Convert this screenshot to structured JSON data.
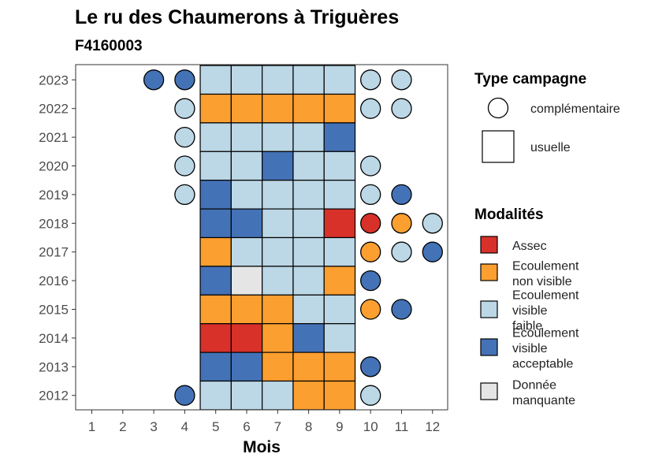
{
  "chart_data": {
    "type": "heatmap",
    "title": "Le ru des Chaumerons à Triguères",
    "subtitle": "F4160003",
    "xlabel": "Mois",
    "ylabel": "",
    "x_ticks": [
      "1",
      "2",
      "3",
      "4",
      "5",
      "6",
      "7",
      "8",
      "9",
      "10",
      "11",
      "12"
    ],
    "y_ticks": [
      "2012",
      "2013",
      "2014",
      "2015",
      "2016",
      "2017",
      "2018",
      "2019",
      "2020",
      "2021",
      "2022",
      "2023"
    ],
    "grid": false,
    "legends": {
      "campaign": {
        "title": "Type campagne",
        "items": [
          {
            "key": "complementaire",
            "label": "complémentaire",
            "shape": "circle"
          },
          {
            "key": "usuelle",
            "label": "usuelle",
            "shape": "square"
          }
        ]
      },
      "modalities": {
        "title": "Modalités",
        "items": [
          {
            "key": "A",
            "lines": [
              "Assec"
            ],
            "color": "#d7312a"
          },
          {
            "key": "E",
            "lines": [
              "Ecoulement",
              "non visible"
            ],
            "color": "#fb9f30"
          },
          {
            "key": "F",
            "lines": [
              "Ecoulement",
              "visible",
              "faible"
            ],
            "color": "#bcd7e6"
          },
          {
            "key": "V",
            "lines": [
              "Ecoulement",
              "visible",
              "acceptable"
            ],
            "color": "#4472b6"
          },
          {
            "key": "D",
            "lines": [
              "Donnée",
              "manquante"
            ],
            "color": "#e5e5e5"
          }
        ]
      }
    },
    "rows": [
      {
        "year": "2023",
        "cells": [
          {
            "m": 3,
            "v": "V",
            "t": "c"
          },
          {
            "m": 4,
            "v": "V",
            "t": "c"
          },
          {
            "m": 5,
            "v": "F",
            "t": "u"
          },
          {
            "m": 6,
            "v": "F",
            "t": "u"
          },
          {
            "m": 7,
            "v": "F",
            "t": "u"
          },
          {
            "m": 8,
            "v": "F",
            "t": "u"
          },
          {
            "m": 9,
            "v": "F",
            "t": "u"
          },
          {
            "m": 10,
            "v": "F",
            "t": "c"
          },
          {
            "m": 11,
            "v": "F",
            "t": "c"
          }
        ]
      },
      {
        "year": "2022",
        "cells": [
          {
            "m": 4,
            "v": "F",
            "t": "c"
          },
          {
            "m": 5,
            "v": "E",
            "t": "u"
          },
          {
            "m": 6,
            "v": "E",
            "t": "u"
          },
          {
            "m": 7,
            "v": "E",
            "t": "u"
          },
          {
            "m": 8,
            "v": "E",
            "t": "u"
          },
          {
            "m": 9,
            "v": "E",
            "t": "u"
          },
          {
            "m": 10,
            "v": "F",
            "t": "c"
          },
          {
            "m": 11,
            "v": "F",
            "t": "c"
          }
        ]
      },
      {
        "year": "2021",
        "cells": [
          {
            "m": 4,
            "v": "F",
            "t": "c"
          },
          {
            "m": 5,
            "v": "F",
            "t": "u"
          },
          {
            "m": 6,
            "v": "F",
            "t": "u"
          },
          {
            "m": 7,
            "v": "F",
            "t": "u"
          },
          {
            "m": 8,
            "v": "F",
            "t": "u"
          },
          {
            "m": 9,
            "v": "V",
            "t": "u"
          }
        ]
      },
      {
        "year": "2020",
        "cells": [
          {
            "m": 4,
            "v": "F",
            "t": "c"
          },
          {
            "m": 5,
            "v": "F",
            "t": "u"
          },
          {
            "m": 6,
            "v": "F",
            "t": "u"
          },
          {
            "m": 7,
            "v": "V",
            "t": "u"
          },
          {
            "m": 8,
            "v": "F",
            "t": "u"
          },
          {
            "m": 9,
            "v": "F",
            "t": "u"
          },
          {
            "m": 10,
            "v": "F",
            "t": "c"
          }
        ]
      },
      {
        "year": "2019",
        "cells": [
          {
            "m": 4,
            "v": "F",
            "t": "c"
          },
          {
            "m": 5,
            "v": "V",
            "t": "u"
          },
          {
            "m": 6,
            "v": "F",
            "t": "u"
          },
          {
            "m": 7,
            "v": "F",
            "t": "u"
          },
          {
            "m": 8,
            "v": "F",
            "t": "u"
          },
          {
            "m": 9,
            "v": "F",
            "t": "u"
          },
          {
            "m": 10,
            "v": "F",
            "t": "c"
          },
          {
            "m": 11,
            "v": "V",
            "t": "c"
          }
        ]
      },
      {
        "year": "2018",
        "cells": [
          {
            "m": 5,
            "v": "V",
            "t": "u"
          },
          {
            "m": 6,
            "v": "V",
            "t": "u"
          },
          {
            "m": 7,
            "v": "F",
            "t": "u"
          },
          {
            "m": 8,
            "v": "F",
            "t": "u"
          },
          {
            "m": 9,
            "v": "A",
            "t": "u"
          },
          {
            "m": 10,
            "v": "A",
            "t": "c"
          },
          {
            "m": 11,
            "v": "E",
            "t": "c"
          },
          {
            "m": 12,
            "v": "F",
            "t": "c"
          }
        ]
      },
      {
        "year": "2017",
        "cells": [
          {
            "m": 5,
            "v": "E",
            "t": "u"
          },
          {
            "m": 6,
            "v": "F",
            "t": "u"
          },
          {
            "m": 7,
            "v": "F",
            "t": "u"
          },
          {
            "m": 8,
            "v": "F",
            "t": "u"
          },
          {
            "m": 9,
            "v": "F",
            "t": "u"
          },
          {
            "m": 10,
            "v": "E",
            "t": "c"
          },
          {
            "m": 11,
            "v": "F",
            "t": "c"
          },
          {
            "m": 12,
            "v": "V",
            "t": "c"
          }
        ]
      },
      {
        "year": "2016",
        "cells": [
          {
            "m": 5,
            "v": "V",
            "t": "u"
          },
          {
            "m": 6,
            "v": "D",
            "t": "u"
          },
          {
            "m": 7,
            "v": "F",
            "t": "u"
          },
          {
            "m": 8,
            "v": "F",
            "t": "u"
          },
          {
            "m": 9,
            "v": "E",
            "t": "u"
          },
          {
            "m": 10,
            "v": "V",
            "t": "c"
          }
        ]
      },
      {
        "year": "2015",
        "cells": [
          {
            "m": 5,
            "v": "E",
            "t": "u"
          },
          {
            "m": 6,
            "v": "E",
            "t": "u"
          },
          {
            "m": 7,
            "v": "E",
            "t": "u"
          },
          {
            "m": 8,
            "v": "F",
            "t": "u"
          },
          {
            "m": 9,
            "v": "F",
            "t": "u"
          },
          {
            "m": 10,
            "v": "E",
            "t": "c"
          },
          {
            "m": 11,
            "v": "V",
            "t": "c"
          }
        ]
      },
      {
        "year": "2014",
        "cells": [
          {
            "m": 5,
            "v": "A",
            "t": "u"
          },
          {
            "m": 6,
            "v": "A",
            "t": "u"
          },
          {
            "m": 7,
            "v": "E",
            "t": "u"
          },
          {
            "m": 8,
            "v": "V",
            "t": "u"
          },
          {
            "m": 9,
            "v": "F",
            "t": "u"
          }
        ]
      },
      {
        "year": "2013",
        "cells": [
          {
            "m": 5,
            "v": "V",
            "t": "u"
          },
          {
            "m": 6,
            "v": "V",
            "t": "u"
          },
          {
            "m": 7,
            "v": "E",
            "t": "u"
          },
          {
            "m": 8,
            "v": "E",
            "t": "u"
          },
          {
            "m": 9,
            "v": "E",
            "t": "u"
          },
          {
            "m": 10,
            "v": "V",
            "t": "c"
          }
        ]
      },
      {
        "year": "2012",
        "cells": [
          {
            "m": 4,
            "v": "V",
            "t": "c"
          },
          {
            "m": 5,
            "v": "F",
            "t": "u"
          },
          {
            "m": 6,
            "v": "F",
            "t": "u"
          },
          {
            "m": 7,
            "v": "F",
            "t": "u"
          },
          {
            "m": 8,
            "v": "E",
            "t": "u"
          },
          {
            "m": 9,
            "v": "E",
            "t": "u"
          },
          {
            "m": 10,
            "v": "F",
            "t": "c"
          }
        ]
      }
    ]
  }
}
